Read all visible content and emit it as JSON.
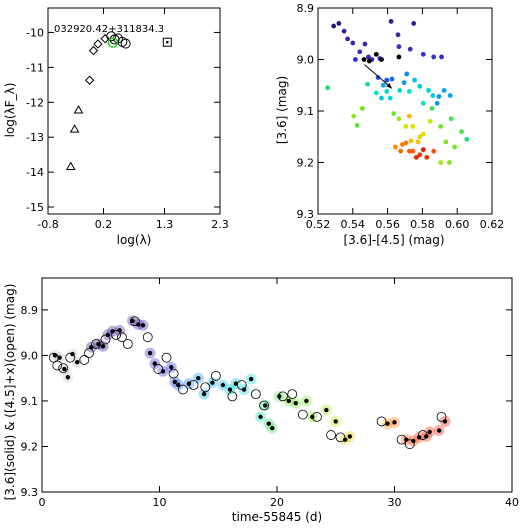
{
  "chart_data": [
    {
      "type": "scatter",
      "title": "032920.42+311834.3",
      "xlabel": "log(λ)",
      "ylabel": "log(λF_λ)",
      "xlim": [
        -0.8,
        2.3
      ],
      "ylim": [
        -15.2,
        -9.3
      ],
      "y_reversed": false,
      "xticks": [
        "-0.8",
        "0.2",
        "1.3",
        "2.3"
      ],
      "xtick_values": [
        -0.8,
        0.2,
        1.3,
        2.3
      ],
      "yticks": [
        "-10",
        "-11",
        "-12",
        "-13",
        "-14",
        "-15"
      ],
      "ytick_values": [
        -10,
        -11,
        -12,
        -13,
        -14,
        -15
      ],
      "series": [
        {
          "marker": "triangle",
          "points": [
            {
              "x": -0.39,
              "y": -13.84
            },
            {
              "x": -0.32,
              "y": -12.77
            },
            {
              "x": -0.25,
              "y": -12.22
            }
          ]
        },
        {
          "marker": "diamond",
          "points": [
            {
              "x": -0.05,
              "y": -11.37
            },
            {
              "x": 0.02,
              "y": -10.52
            },
            {
              "x": 0.1,
              "y": -10.33
            },
            {
              "x": 0.23,
              "y": -10.18
            }
          ]
        },
        {
          "marker": "circle",
          "points": [
            {
              "x": 0.34,
              "y": -10.11
            },
            {
              "x": 0.4,
              "y": -10.2
            },
            {
              "x": 0.46,
              "y": -10.17
            },
            {
              "x": 0.54,
              "y": -10.27
            },
            {
              "x": 0.6,
              "y": -10.32
            }
          ]
        },
        {
          "marker": "circle-highlight",
          "color": "#22cc22",
          "points": [
            {
              "x": 0.37,
              "y": -10.29
            }
          ]
        },
        {
          "marker": "square",
          "points": [
            {
              "x": 1.35,
              "y": -10.28
            }
          ]
        }
      ]
    },
    {
      "type": "scatter",
      "xlabel": "[3.6]-[4.5] (mag)",
      "ylabel": "[3.6] (mag)",
      "xlim": [
        0.52,
        0.62
      ],
      "ylim": [
        8.9,
        9.3
      ],
      "y_reversed": true,
      "xticks": [
        "0.52",
        "0.54",
        "0.56",
        "0.58",
        "0.60",
        "0.62"
      ],
      "xtick_values": [
        0.52,
        0.54,
        0.56,
        0.58,
        0.6,
        0.62
      ],
      "yticks": [
        "8.9",
        "9.0",
        "9.1",
        "9.2",
        "9.3"
      ],
      "ytick_values": [
        8.9,
        9.0,
        9.1,
        9.2,
        9.3
      ],
      "annotation": {
        "type": "arrow",
        "from": {
          "x": 0.5467,
          "y": 9.01
        },
        "to": {
          "x": 0.5625,
          "y": 9.056
        }
      },
      "points": [
        {
          "x": 0.529,
          "y": 8.935,
          "c": 0.05
        },
        {
          "x": 0.532,
          "y": 8.93,
          "c": 0.06
        },
        {
          "x": 0.535,
          "y": 8.945,
          "c": 0.07
        },
        {
          "x": 0.537,
          "y": 8.96,
          "c": 0.08
        },
        {
          "x": 0.54,
          "y": 8.968,
          "c": 0.1
        },
        {
          "x": 0.544,
          "y": 8.985,
          "c": 0.12
        },
        {
          "x": 0.547,
          "y": 8.97,
          "c": 0.1
        },
        {
          "x": 0.549,
          "y": 8.995,
          "c": 0.11
        },
        {
          "x": 0.551,
          "y": 9.0,
          "c": 0.12
        },
        {
          "x": 0.5415,
          "y": 9.0,
          "c": 0.15
        },
        {
          "x": 0.5555,
          "y": 8.998,
          "c": 0.14
        },
        {
          "x": 0.562,
          "y": 8.926,
          "c": 0.06
        },
        {
          "x": 0.566,
          "y": 8.952,
          "c": 0.09
        },
        {
          "x": 0.5665,
          "y": 8.975,
          "c": 0.13
        },
        {
          "x": 0.575,
          "y": 8.93,
          "c": 0.07
        },
        {
          "x": 0.573,
          "y": 8.98,
          "c": 0.14
        },
        {
          "x": 0.5465,
          "y": 9.0,
          "c": 0.0
        },
        {
          "x": 0.5495,
          "y": 9.003,
          "c": 0.0
        },
        {
          "x": 0.5535,
          "y": 8.99,
          "c": 0.0
        },
        {
          "x": 0.5565,
          "y": 9.0,
          "c": 0.0
        },
        {
          "x": 0.5665,
          "y": 8.995,
          "c": 0.0
        },
        {
          "x": 0.5805,
          "y": 8.99,
          "c": 0.15
        },
        {
          "x": 0.5865,
          "y": 8.995,
          "c": 0.16
        },
        {
          "x": 0.591,
          "y": 8.995,
          "c": 0.13
        },
        {
          "x": 0.5545,
          "y": 9.035,
          "c": 0.22
        },
        {
          "x": 0.5595,
          "y": 9.04,
          "c": 0.22
        },
        {
          "x": 0.5625,
          "y": 9.038,
          "c": 0.25
        },
        {
          "x": 0.571,
          "y": 9.028,
          "c": 0.28
        },
        {
          "x": 0.5695,
          "y": 9.045,
          "c": 0.3
        },
        {
          "x": 0.5575,
          "y": 9.05,
          "c": 0.32
        },
        {
          "x": 0.5755,
          "y": 9.04,
          "c": 0.36
        },
        {
          "x": 0.5785,
          "y": 9.052,
          "c": 0.38
        },
        {
          "x": 0.567,
          "y": 9.06,
          "c": 0.4
        },
        {
          "x": 0.5725,
          "y": 9.062,
          "c": 0.42
        },
        {
          "x": 0.5835,
          "y": 9.06,
          "c": 0.4
        },
        {
          "x": 0.5925,
          "y": 9.06,
          "c": 0.32
        },
        {
          "x": 0.5535,
          "y": 9.065,
          "c": 0.42
        },
        {
          "x": 0.5595,
          "y": 9.062,
          "c": 0.4
        },
        {
          "x": 0.5615,
          "y": 9.075,
          "c": 0.4
        },
        {
          "x": 0.5565,
          "y": 9.075,
          "c": 0.38
        },
        {
          "x": 0.5805,
          "y": 9.085,
          "c": 0.45
        },
        {
          "x": 0.586,
          "y": 9.07,
          "c": 0.38
        },
        {
          "x": 0.596,
          "y": 9.07,
          "c": 0.32
        },
        {
          "x": 0.5895,
          "y": 9.072,
          "c": 0.3
        },
        {
          "x": 0.5885,
          "y": 9.085,
          "c": 0.3
        },
        {
          "x": 0.5255,
          "y": 9.055,
          "c": 0.5
        },
        {
          "x": 0.5485,
          "y": 9.048,
          "c": 0.48
        },
        {
          "x": 0.5855,
          "y": 9.095,
          "c": 0.55
        },
        {
          "x": 0.5405,
          "y": 9.11,
          "c": 0.62
        },
        {
          "x": 0.5425,
          "y": 9.128,
          "c": 0.58
        },
        {
          "x": 0.5455,
          "y": 9.095,
          "c": 0.6
        },
        {
          "x": 0.5635,
          "y": 9.105,
          "c": 0.6
        },
        {
          "x": 0.5665,
          "y": 9.115,
          "c": 0.65
        },
        {
          "x": 0.5705,
          "y": 9.13,
          "c": 0.7
        },
        {
          "x": 0.5745,
          "y": 9.13,
          "c": 0.72
        },
        {
          "x": 0.5785,
          "y": 9.15,
          "c": 0.75
        },
        {
          "x": 0.5775,
          "y": 9.16,
          "c": 0.78
        },
        {
          "x": 0.5735,
          "y": 9.158,
          "c": 0.78
        },
        {
          "x": 0.5725,
          "y": 9.11,
          "c": 0.8
        },
        {
          "x": 0.5805,
          "y": 9.145,
          "c": 0.72
        },
        {
          "x": 0.5845,
          "y": 9.12,
          "c": 0.7
        },
        {
          "x": 0.5905,
          "y": 9.13,
          "c": 0.6
        },
        {
          "x": 0.5935,
          "y": 9.16,
          "c": 0.62
        },
        {
          "x": 0.5985,
          "y": 9.17,
          "c": 0.6
        },
        {
          "x": 0.6025,
          "y": 9.14,
          "c": 0.55
        },
        {
          "x": 0.6055,
          "y": 9.155,
          "c": 0.5
        },
        {
          "x": 0.5965,
          "y": 9.115,
          "c": 0.55
        },
        {
          "x": 0.5905,
          "y": 9.2,
          "c": 0.65
        },
        {
          "x": 0.5955,
          "y": 9.2,
          "c": 0.62
        },
        {
          "x": 0.5745,
          "y": 9.178,
          "c": 0.9
        },
        {
          "x": 0.5785,
          "y": 9.185,
          "c": 0.95
        },
        {
          "x": 0.5805,
          "y": 9.175,
          "c": 0.98
        },
        {
          "x": 0.5825,
          "y": 9.19,
          "c": 0.95
        },
        {
          "x": 0.5865,
          "y": 9.178,
          "c": 0.92
        },
        {
          "x": 0.5675,
          "y": 9.178,
          "c": 0.88
        },
        {
          "x": 0.5645,
          "y": 9.17,
          "c": 0.85
        },
        {
          "x": 0.5685,
          "y": 9.165,
          "c": 0.86
        },
        {
          "x": 0.5705,
          "y": 9.162,
          "c": 0.87
        },
        {
          "x": 0.5725,
          "y": 9.178,
          "c": 0.9
        },
        {
          "x": 0.5765,
          "y": 9.19,
          "c": 0.97
        }
      ]
    },
    {
      "type": "scatter",
      "xlabel": "time-55845 (d)",
      "ylabel": "[3.6](solid) & ([4.5]+x)(open) (mag)",
      "xlim": [
        0,
        40
      ],
      "ylim": [
        8.83,
        9.3
      ],
      "y_reversed": true,
      "xticks": [
        "0",
        "10",
        "20",
        "30",
        "40"
      ],
      "xtick_values": [
        0,
        10,
        20,
        30,
        40
      ],
      "yticks": [
        "8.9",
        "9.0",
        "9.1",
        "9.2",
        "9.3"
      ],
      "ytick_values": [
        8.9,
        9.0,
        9.1,
        9.2,
        9.3
      ],
      "solid": [
        {
          "x": 1.1,
          "y": 9.0,
          "c": 0.0
        },
        {
          "x": 1.5,
          "y": 9.005,
          "c": 0.0
        },
        {
          "x": 1.9,
          "y": 9.03,
          "c": 0.0
        },
        {
          "x": 2.2,
          "y": 9.048,
          "c": 0.0
        },
        {
          "x": 2.6,
          "y": 8.997,
          "c": 0.0
        },
        {
          "x": 3.0,
          "y": 9.015,
          "c": 0.0
        },
        {
          "x": 4.2,
          "y": 8.982,
          "c": 0.05
        },
        {
          "x": 4.8,
          "y": 8.975,
          "c": 0.05
        },
        {
          "x": 5.2,
          "y": 8.98,
          "c": 0.06
        },
        {
          "x": 5.6,
          "y": 8.955,
          "c": 0.07
        },
        {
          "x": 6.0,
          "y": 8.947,
          "c": 0.07
        },
        {
          "x": 6.6,
          "y": 8.945,
          "c": 0.08
        },
        {
          "x": 7.7,
          "y": 8.924,
          "c": 0.09
        },
        {
          "x": 8.2,
          "y": 8.932,
          "c": 0.09
        },
        {
          "x": 8.6,
          "y": 8.934,
          "c": 0.1
        },
        {
          "x": 9.2,
          "y": 8.995,
          "c": 0.12
        },
        {
          "x": 9.6,
          "y": 9.018,
          "c": 0.13
        },
        {
          "x": 10.3,
          "y": 9.035,
          "c": 0.16
        },
        {
          "x": 11.0,
          "y": 9.026,
          "c": 0.2
        },
        {
          "x": 11.3,
          "y": 9.058,
          "c": 0.22
        },
        {
          "x": 11.6,
          "y": 9.065,
          "c": 0.25
        },
        {
          "x": 12.5,
          "y": 9.062,
          "c": 0.26
        },
        {
          "x": 13.3,
          "y": 9.05,
          "c": 0.3
        },
        {
          "x": 13.8,
          "y": 9.085,
          "c": 0.32
        },
        {
          "x": 14.5,
          "y": 9.06,
          "c": 0.34
        },
        {
          "x": 15.4,
          "y": 9.065,
          "c": 0.36
        },
        {
          "x": 16.0,
          "y": 9.075,
          "c": 0.38
        },
        {
          "x": 16.5,
          "y": 9.062,
          "c": 0.38
        },
        {
          "x": 17.2,
          "y": 9.075,
          "c": 0.4
        },
        {
          "x": 17.8,
          "y": 9.052,
          "c": 0.42
        },
        {
          "x": 18.6,
          "y": 9.135,
          "c": 0.45
        },
        {
          "x": 19.0,
          "y": 9.11,
          "c": 0.5
        },
        {
          "x": 19.3,
          "y": 9.15,
          "c": 0.52
        },
        {
          "x": 19.6,
          "y": 9.16,
          "c": 0.55
        },
        {
          "x": 20.2,
          "y": 9.09,
          "c": 0.55
        },
        {
          "x": 21.0,
          "y": 9.1,
          "c": 0.6
        },
        {
          "x": 21.6,
          "y": 9.105,
          "c": 0.6
        },
        {
          "x": 22.5,
          "y": 9.1,
          "c": 0.6
        },
        {
          "x": 23.0,
          "y": 9.135,
          "c": 0.62
        },
        {
          "x": 24.2,
          "y": 9.12,
          "c": 0.65
        },
        {
          "x": 25.0,
          "y": 9.145,
          "c": 0.7
        },
        {
          "x": 25.8,
          "y": 9.185,
          "c": 0.72
        },
        {
          "x": 26.2,
          "y": 9.178,
          "c": 0.75
        },
        {
          "x": 29.4,
          "y": 9.15,
          "c": 0.85
        },
        {
          "x": 30.0,
          "y": 9.147,
          "c": 0.87
        },
        {
          "x": 31.0,
          "y": 9.185,
          "c": 0.9
        },
        {
          "x": 31.6,
          "y": 9.188,
          "c": 0.92
        },
        {
          "x": 32.1,
          "y": 9.18,
          "c": 0.93
        },
        {
          "x": 32.7,
          "y": 9.178,
          "c": 0.95
        },
        {
          "x": 33.0,
          "y": 9.168,
          "c": 0.95
        },
        {
          "x": 33.8,
          "y": 9.165,
          "c": 0.97
        },
        {
          "x": 34.3,
          "y": 9.145,
          "c": 0.98
        }
      ],
      "open": [
        {
          "x": 1.0,
          "y": 9.005
        },
        {
          "x": 1.3,
          "y": 9.022
        },
        {
          "x": 1.8,
          "y": 9.028
        },
        {
          "x": 2.4,
          "y": 9.005
        },
        {
          "x": 3.6,
          "y": 9.01
        },
        {
          "x": 4.0,
          "y": 8.995
        },
        {
          "x": 4.6,
          "y": 8.975
        },
        {
          "x": 5.4,
          "y": 8.965
        },
        {
          "x": 6.3,
          "y": 8.955
        },
        {
          "x": 6.8,
          "y": 8.96
        },
        {
          "x": 7.3,
          "y": 8.975
        },
        {
          "x": 7.9,
          "y": 8.925
        },
        {
          "x": 9.0,
          "y": 8.96
        },
        {
          "x": 9.9,
          "y": 9.03
        },
        {
          "x": 10.6,
          "y": 9.005
        },
        {
          "x": 11.2,
          "y": 9.04
        },
        {
          "x": 12.0,
          "y": 9.075
        },
        {
          "x": 12.9,
          "y": 9.065
        },
        {
          "x": 13.9,
          "y": 9.07
        },
        {
          "x": 14.8,
          "y": 9.045
        },
        {
          "x": 16.2,
          "y": 9.09
        },
        {
          "x": 17.0,
          "y": 9.065
        },
        {
          "x": 18.2,
          "y": 9.085
        },
        {
          "x": 18.9,
          "y": 9.11
        },
        {
          "x": 20.5,
          "y": 9.09
        },
        {
          "x": 21.3,
          "y": 9.085
        },
        {
          "x": 22.2,
          "y": 9.13
        },
        {
          "x": 23.4,
          "y": 9.135
        },
        {
          "x": 24.6,
          "y": 9.175
        },
        {
          "x": 25.4,
          "y": 9.18
        },
        {
          "x": 28.9,
          "y": 9.145
        },
        {
          "x": 30.6,
          "y": 9.185
        },
        {
          "x": 31.3,
          "y": 9.195
        },
        {
          "x": 32.4,
          "y": 9.175
        },
        {
          "x": 34.0,
          "y": 9.135
        }
      ]
    }
  ]
}
